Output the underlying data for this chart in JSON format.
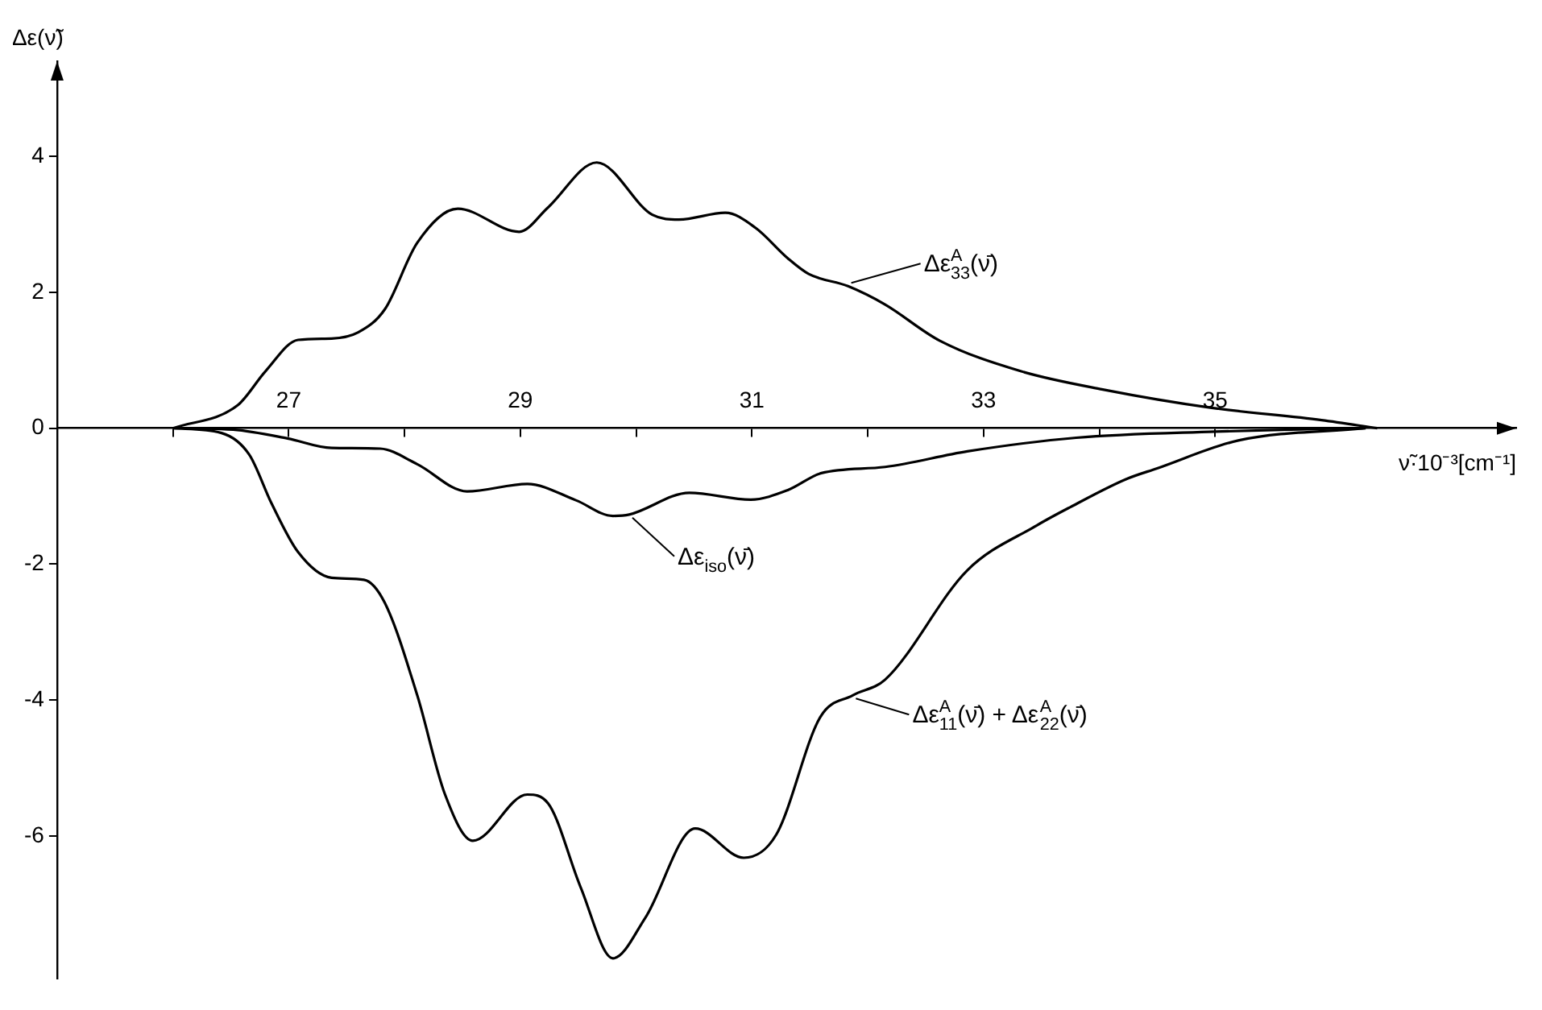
{
  "chart_data": {
    "type": "line",
    "xlabel": "ν̃·10⁻³[cm⁻¹]",
    "ylabel": "Δε(ν̃)",
    "xlim": [
      25,
      37.6
    ],
    "ylim": [
      -8.1,
      5.4
    ],
    "xticks": [
      {
        "value": 26,
        "label": null
      },
      27,
      {
        "value": 28,
        "label": null
      },
      29,
      {
        "value": 30,
        "label": null
      },
      31,
      {
        "value": 32,
        "label": null
      },
      33,
      {
        "value": 34,
        "label": null
      },
      35
    ],
    "yticks": [
      -6,
      -4,
      -2,
      0,
      2,
      4
    ],
    "line_style": "solid",
    "marker": "none",
    "series": [
      {
        "color": "#000000",
        "x": [
          26.0,
          26.56,
          26.8,
          27.08,
          27.37,
          27.6,
          27.83,
          28.11,
          28.46,
          28.99,
          29.24,
          29.66,
          30.14,
          30.37,
          30.77,
          31.03,
          31.31,
          31.49,
          31.83,
          32.15,
          32.62,
          33.32,
          34.03,
          34.97,
          35.92,
          36.4
        ],
        "values": [
          0,
          0.34,
          0.84,
          1.3,
          1.32,
          1.41,
          1.75,
          2.73,
          3.23,
          2.89,
          3.25,
          3.91,
          3.14,
          3.07,
          3.17,
          2.95,
          2.5,
          2.27,
          2.09,
          1.82,
          1.29,
          0.84,
          0.57,
          0.3,
          0.12,
          0
        ]
      },
      {
        "color": "#000000",
        "x": [
          26.1,
          26.52,
          26.99,
          27.37,
          27.79,
          28.11,
          28.54,
          29.06,
          29.48,
          29.8,
          29.94,
          30.46,
          30.99,
          31.31,
          31.6,
          32.15,
          32.86,
          33.8,
          35.0,
          36.15
        ],
        "values": [
          0,
          -0.02,
          -0.15,
          -0.29,
          -0.3,
          -0.53,
          -0.93,
          -0.82,
          -1.06,
          -1.29,
          -1.27,
          -0.95,
          -1.05,
          -0.91,
          -0.66,
          -0.57,
          -0.34,
          -0.14,
          -0.05,
          0
        ]
      },
      {
        "color": "#000000",
        "x": [
          26.0,
          26.42,
          26.66,
          26.85,
          27.08,
          27.37,
          27.65,
          27.83,
          28.11,
          28.35,
          28.59,
          29.06,
          29.24,
          29.52,
          29.8,
          30.08,
          30.51,
          30.93,
          31.21,
          31.59,
          31.87,
          32.15,
          32.86,
          33.46,
          33.75,
          34.23,
          34.5,
          35.2,
          36.3
        ],
        "values": [
          0,
          -0.07,
          -0.39,
          -1.1,
          -1.82,
          -2.2,
          -2.23,
          -2.57,
          -3.93,
          -5.39,
          -6.07,
          -5.39,
          -5.52,
          -6.75,
          -7.8,
          -7.2,
          -5.89,
          -6.32,
          -5.98,
          -4.25,
          -3.93,
          -3.7,
          -2.09,
          -1.43,
          -1.16,
          -0.75,
          -0.59,
          -0.18,
          0
        ]
      }
    ],
    "annotations": [
      {
        "text": "Δε$^{A}$$_{33}$(ν̄)",
        "x": 31.83,
        "y": 2.09
      },
      {
        "text": "Δε$_{iso}$(ν̄)",
        "x": 29.94,
        "y": -1.27
      },
      {
        "text": "Δε$^{A}$$_{11}$(ν̄) + Δε$^{A}$$_{22}$(ν̄)",
        "x": 31.87,
        "y": -3.93
      }
    ]
  }
}
